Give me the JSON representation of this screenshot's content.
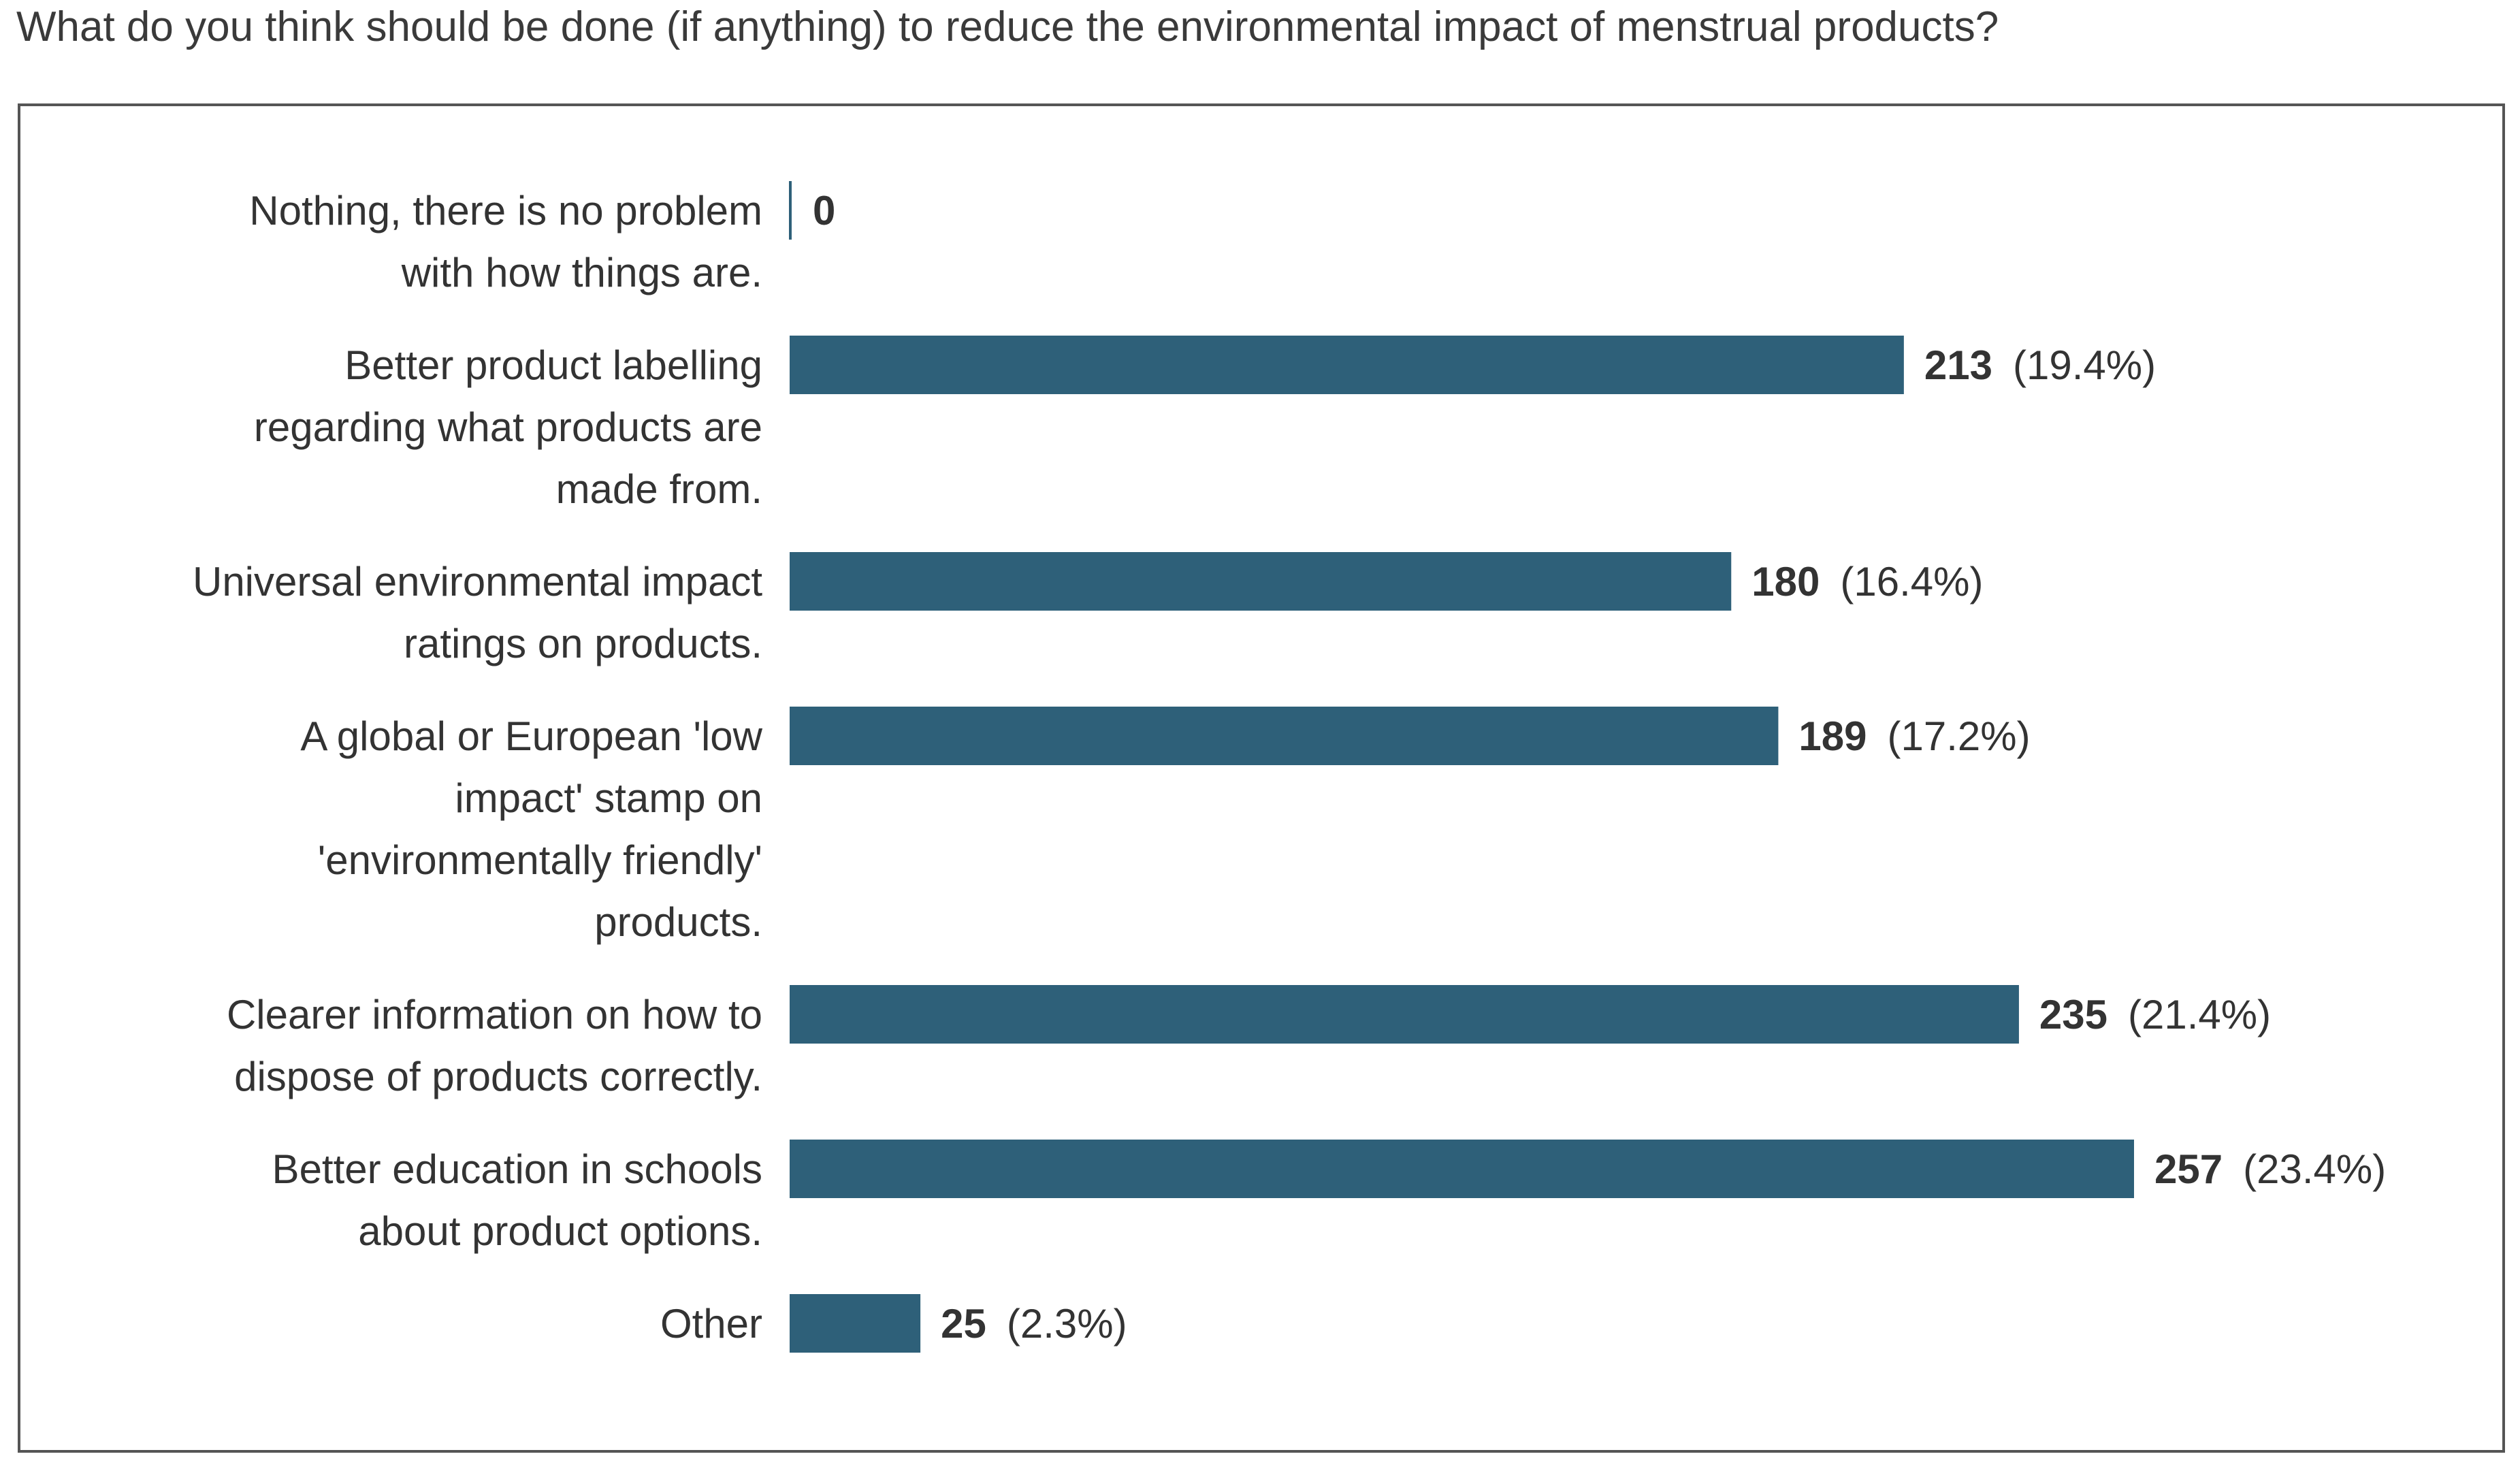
{
  "question": "What do you think should be done (if anything) to reduce the environmental impact of menstrual products?",
  "chart_data": {
    "type": "bar",
    "orientation": "horizontal",
    "title": "What do you think should be done (if anything) to reduce the environmental impact of menstrual products?",
    "xlabel": "",
    "ylabel": "",
    "grid": false,
    "legend": "none",
    "xlim": [
      0,
      257
    ],
    "bar_color": "#2e6079",
    "categories": [
      [
        "Nothing, there is no problem",
        "with how things are."
      ],
      [
        "Better product labelling",
        "regarding what products are",
        "made from."
      ],
      [
        "Universal environmental impact",
        "ratings on products."
      ],
      [
        "A global or European 'low",
        "impact' stamp on",
        "'environmentally friendly'",
        "products."
      ],
      [
        "Clearer information on how to",
        "dispose of products correctly."
      ],
      [
        "Better education in schools",
        "about product options."
      ],
      [
        "Other"
      ]
    ],
    "values": [
      0,
      213,
      180,
      189,
      235,
      257,
      25
    ],
    "percent_labels": [
      "",
      "(19.4%)",
      "(16.4%)",
      "(17.2%)",
      "(21.4%)",
      "(23.4%)",
      "(2.3%)"
    ]
  }
}
